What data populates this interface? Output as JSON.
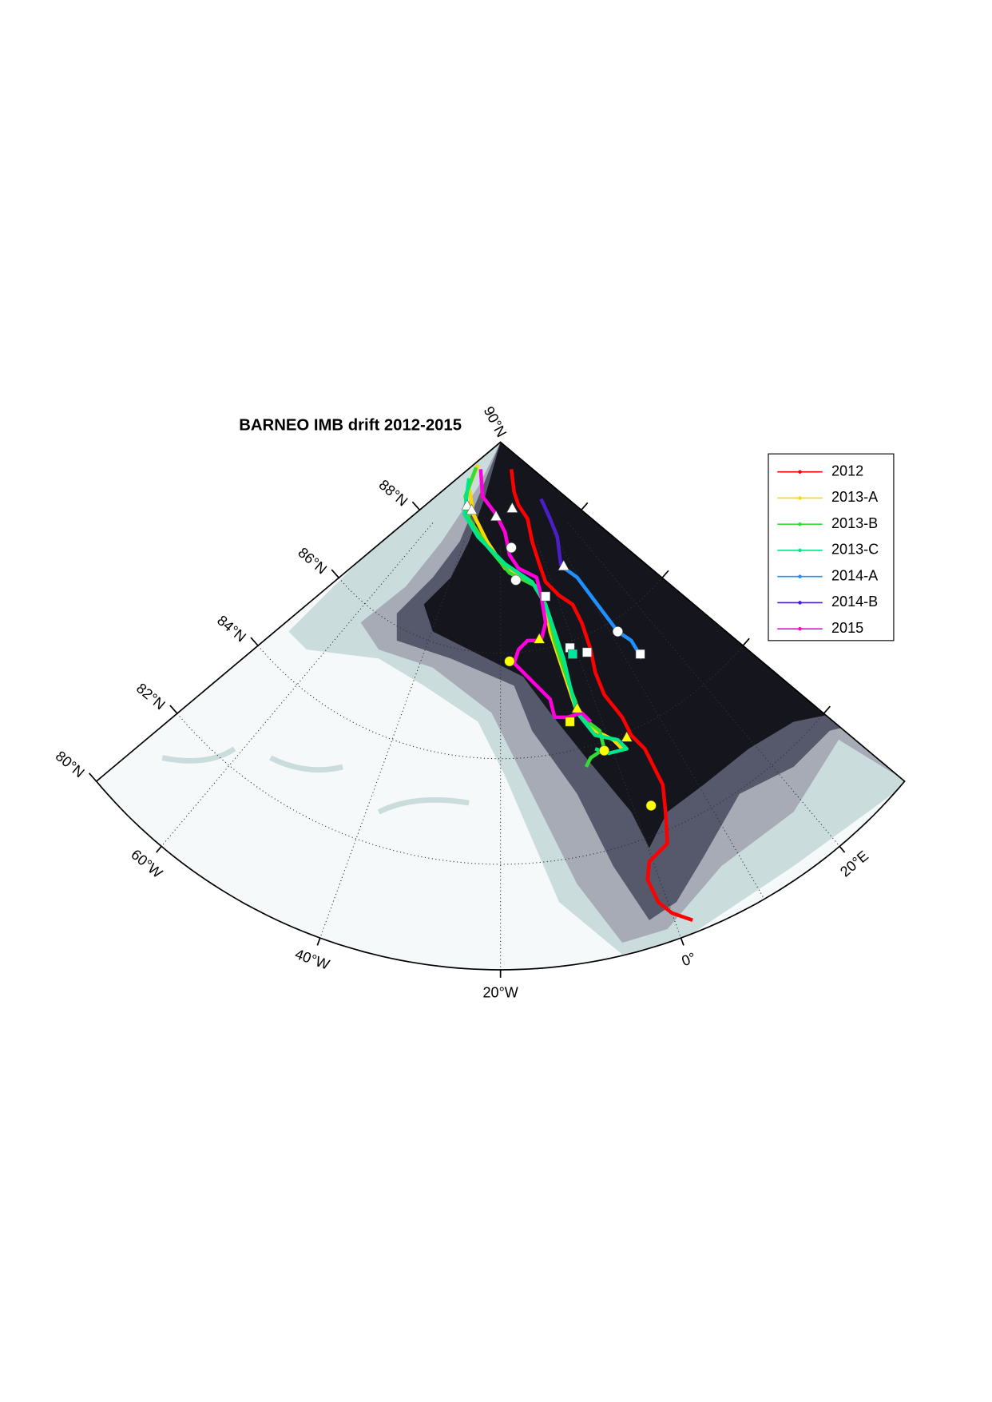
{
  "title": "BARNEO IMB drift 2012-2015",
  "pole_label": "90°N",
  "latitude_labels": [
    "80°N",
    "82°N",
    "84°N",
    "86°N",
    "88°N"
  ],
  "longitude_labels": [
    "60°W",
    "40°W",
    "20°W",
    "0°",
    "20°E"
  ],
  "legend": [
    {
      "name": "2012",
      "color": "#ff0000"
    },
    {
      "name": "2013-A",
      "color": "#ffd700"
    },
    {
      "name": "2013-B",
      "color": "#33dd33"
    },
    {
      "name": "2013-C",
      "color": "#00e68a"
    },
    {
      "name": "2014-A",
      "color": "#1e90ff"
    },
    {
      "name": "2014-B",
      "color": "#4b1fc8"
    },
    {
      "name": "2015",
      "color": "#ff00dd"
    }
  ]
}
